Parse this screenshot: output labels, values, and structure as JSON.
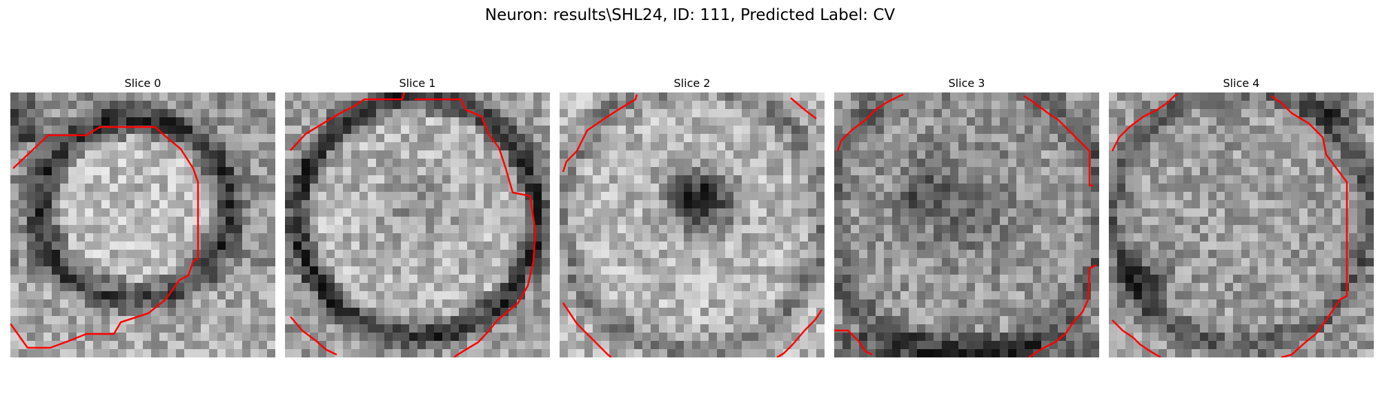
{
  "figure": {
    "title": "Neuron: results\\SHL24, ID: 111, Predicted Label: CV"
  },
  "slices": [
    {
      "title": "Slice 0"
    },
    {
      "title": "Slice 1"
    },
    {
      "title": "Slice 2"
    },
    {
      "title": "Slice 3"
    },
    {
      "title": "Slice 4"
    }
  ],
  "colors": {
    "contour": "#ff0000",
    "background": "#ffffff",
    "colormap": "gray"
  }
}
